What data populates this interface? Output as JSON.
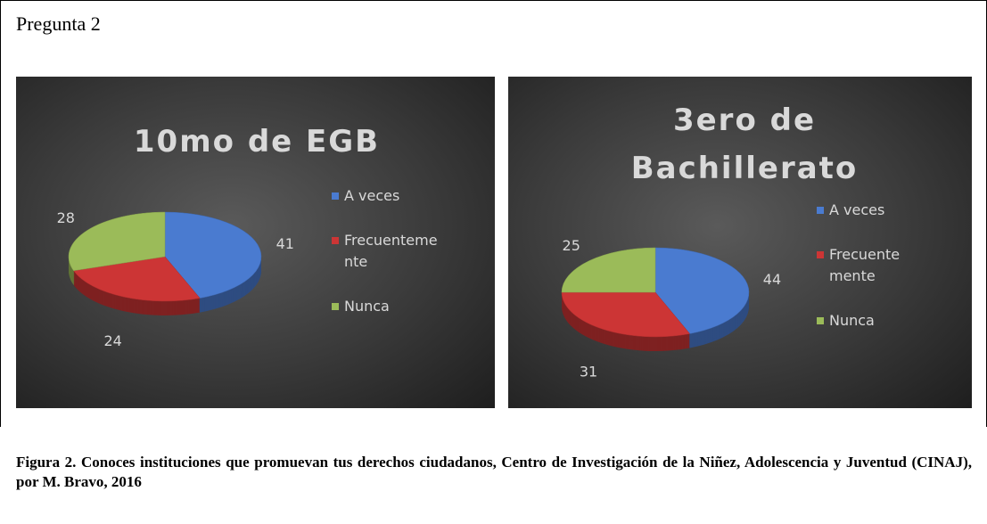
{
  "heading": "Pregunta 2",
  "chart_data": [
    {
      "type": "pie",
      "title": "10mo de EGB",
      "categories": [
        "A veces",
        "Frecuentemente",
        "Nunca"
      ],
      "values": [
        41,
        24,
        28
      ],
      "colors": [
        "#4a7bd0",
        "#cc3535",
        "#9bbb59"
      ],
      "legend": "right"
    },
    {
      "type": "pie",
      "title": "3ero de Bachillerato",
      "categories": [
        "A veces",
        "Frecuentemente",
        "Nunca"
      ],
      "values": [
        44,
        31,
        25
      ],
      "colors": [
        "#4a7bd0",
        "#cc3535",
        "#9bbb59"
      ],
      "legend": "right"
    }
  ],
  "caption": "Figura 2. Conoces instituciones que promuevan tus  derechos ciudadanos, Centro de Investigación de la Niñez, Adolescencia y Juventud (CINAJ), por M. Bravo, 2016"
}
